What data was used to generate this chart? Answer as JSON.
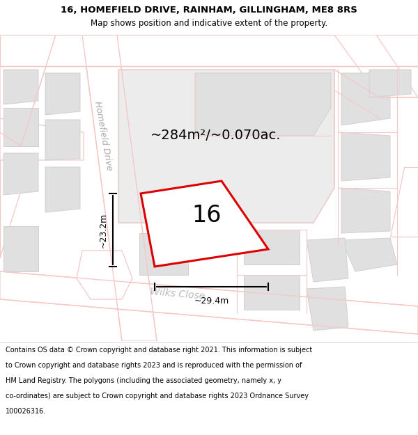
{
  "title_line1": "16, HOMEFIELD DRIVE, RAINHAM, GILLINGHAM, ME8 8RS",
  "title_line2": "Map shows position and indicative extent of the property.",
  "footer_lines": [
    "Contains OS data © Crown copyright and database right 2021. This information is subject",
    "to Crown copyright and database rights 2023 and is reproduced with the permission of",
    "HM Land Registry. The polygons (including the associated geometry, namely x, y",
    "co-ordinates) are subject to Crown copyright and database rights 2023 Ordnance Survey",
    "100026316."
  ],
  "area_label": "~284m²/~0.070ac.",
  "number_label": "16",
  "width_label": "~29.4m",
  "height_label": "~23.2m",
  "map_bg": "#f2f2f2",
  "road_color": "#f5c8c8",
  "road_fill": "#ffffff",
  "building_fill": "#e0e0e0",
  "building_edge": "#d0d0d0",
  "property_color": "#dd0000",
  "title_bg": "#ffffff",
  "footer_bg": "#ffffff",
  "road_label_homefield": "Homefield Drive",
  "road_label_wilks": "Wilks Close",
  "title_fontsize": 9.5,
  "subtitle_fontsize": 8.5,
  "footer_fontsize": 7.0,
  "area_fontsize": 14,
  "number_fontsize": 24,
  "dim_fontsize": 9,
  "road_label_fontsize": 9
}
